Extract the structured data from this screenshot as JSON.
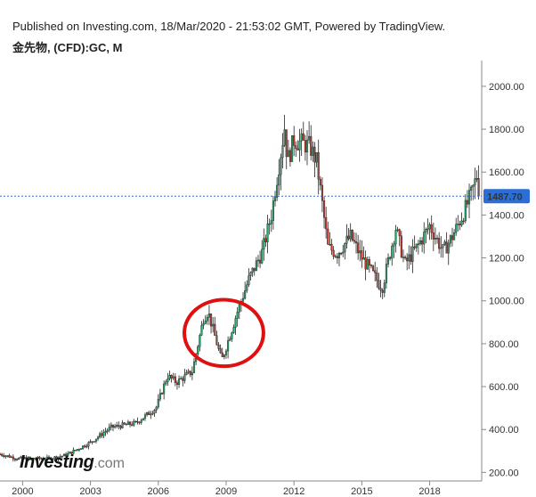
{
  "header": {
    "line1": "Published on Investing.com, 18/Mar/2020 - 21:53:02 GMT, Powered by TradingView.",
    "line2": "金先物, (CFD):GC, M"
  },
  "logo": {
    "main": "Investing",
    "suffix": ".com"
  },
  "colors": {
    "up": "#26a269",
    "down": "#c0392b",
    "wick": "#222222",
    "last_line": "#2b6fd6",
    "circle": "#e01010",
    "grid": "#dddddd",
    "label_bg": "#2b6fd6"
  },
  "chart_data": {
    "type": "candlestick",
    "interval": "monthly",
    "symbol": "金先物, (CFD):GC, M",
    "ylim": [
      160,
      2120
    ],
    "y_ticks": [
      200,
      400,
      600,
      800,
      1000,
      1200,
      1400,
      1600,
      1800,
      2000
    ],
    "y_tick_labels": [
      "200.00",
      "400.00",
      "600.00",
      "800.00",
      "1000.00",
      "1200.00",
      "1400.00",
      "1600.00",
      "1800.00",
      "2000.00"
    ],
    "x_ticks": [
      2000,
      2003,
      2006,
      2009,
      2012,
      2015,
      2018
    ],
    "x_tick_labels": [
      "2000",
      "2003",
      "2006",
      "2009",
      "2012",
      "2015",
      "2018"
    ],
    "xlim": [
      1999.0,
      2020.3
    ],
    "last_price": 1487.7,
    "last_price_label": "1487.70",
    "highlight_circle": {
      "x_center": 2008.9,
      "y_center": 850,
      "x_radius": 1.75,
      "y_radius": 155
    },
    "series": [
      {
        "anchors_date": [
          1999.0,
          1999.75,
          2001.2,
          2001.9,
          2003.0,
          2003.9,
          2005.0,
          2005.9,
          2006.4,
          2006.8,
          2007.5,
          2008.0,
          2008.2,
          2008.8,
          2009.5,
          2010.0,
          2010.6,
          2011.0,
          2011.6,
          2011.7,
          2012.0,
          2012.7,
          2013.0,
          2013.5,
          2013.9,
          2014.5,
          2015.0,
          2015.9,
          2016.5,
          2016.9,
          2017.5,
          2018.0,
          2018.6,
          2019.0,
          2019.5,
          2019.85,
          2020.1,
          2020.2
        ],
        "anchors_price": [
          285,
          265,
          265,
          280,
          340,
          410,
          430,
          500,
          650,
          620,
          670,
          920,
          950,
          720,
          950,
          1100,
          1230,
          1400,
          1820,
          1650,
          1750,
          1720,
          1650,
          1250,
          1220,
          1300,
          1200,
          1060,
          1340,
          1170,
          1260,
          1350,
          1230,
          1300,
          1410,
          1500,
          1590,
          1487.7
        ]
      }
    ]
  }
}
